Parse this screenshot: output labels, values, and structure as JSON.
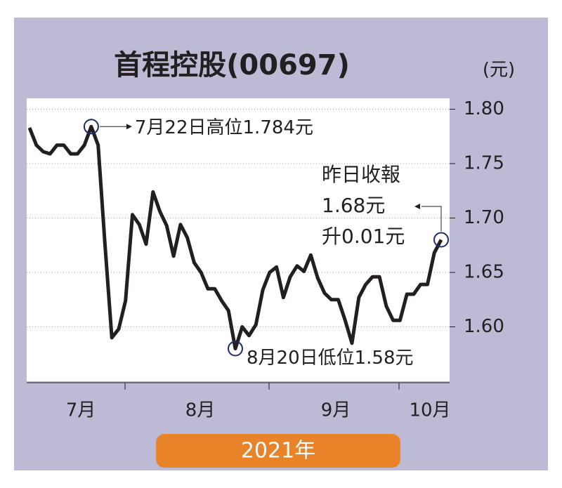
{
  "chart_data": {
    "type": "line",
    "title": "首程控股(00697)",
    "unit_label": "(元)",
    "footer": "2021年",
    "xlabels": [
      "7月",
      "8月",
      "9月",
      "10月"
    ],
    "values": [
      1.783,
      1.767,
      1.761,
      1.759,
      1.767,
      1.767,
      1.759,
      1.759,
      1.767,
      1.784,
      1.767,
      1.676,
      1.59,
      1.598,
      1.624,
      1.703,
      1.694,
      1.676,
      1.724,
      1.706,
      1.693,
      1.665,
      1.694,
      1.682,
      1.659,
      1.65,
      1.635,
      1.635,
      1.624,
      1.615,
      1.58,
      1.6,
      1.592,
      1.602,
      1.634,
      1.65,
      1.655,
      1.627,
      1.646,
      1.656,
      1.651,
      1.666,
      1.645,
      1.631,
      1.625,
      1.625,
      1.606,
      1.585,
      1.627,
      1.639,
      1.646,
      1.646,
      1.619,
      1.606,
      1.606,
      1.63,
      1.63,
      1.639,
      1.639,
      1.668,
      1.68
    ],
    "color": "#231f20",
    "ylim": [
      1.55,
      1.81
    ],
    "yticks": [
      {
        "value": 1.8,
        "label": "1.80"
      },
      1.75,
      {
        "value": 1.7,
        "label": "1.70"
      },
      1.65,
      {
        "value": 1.6,
        "label": "1.60"
      }
    ],
    "grid": true,
    "annotations": {
      "high": "7月22日高位1.784元",
      "low": "8月20日低位1.58元",
      "last": [
        "昨日收報",
        "1.68元",
        "升0.01元"
      ]
    }
  }
}
